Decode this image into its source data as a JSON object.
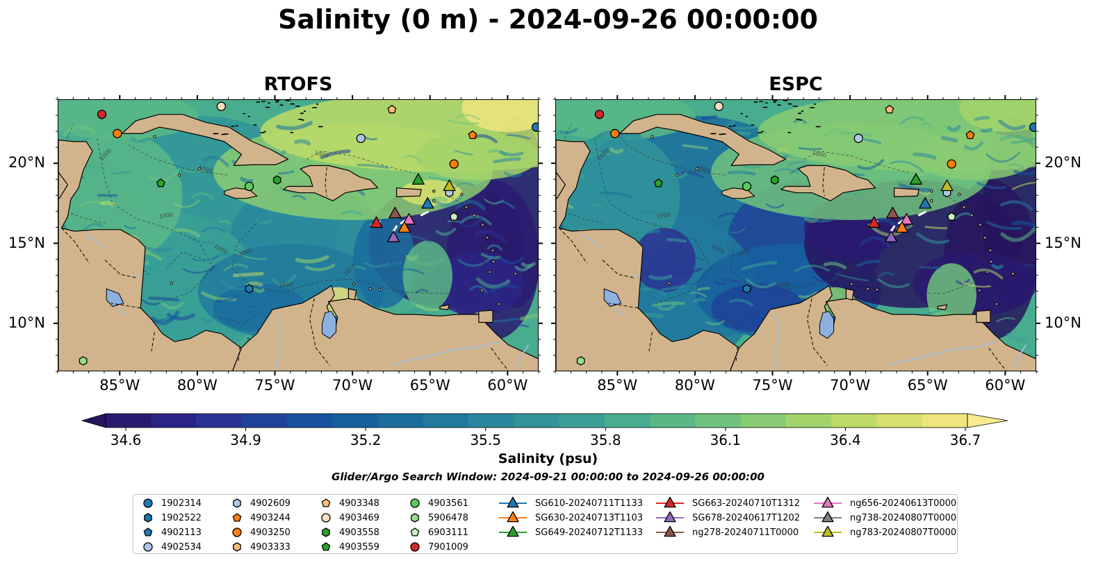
{
  "title": "Salinity (0 m) - 2024-09-26 00:00:00",
  "panels": [
    {
      "title": "RTOFS"
    },
    {
      "title": "ESPC"
    }
  ],
  "lat_labels": [
    "20°N",
    "15°N",
    "10°N"
  ],
  "lon_labels": [
    "85°W",
    "80°W",
    "75°W",
    "70°W",
    "65°W",
    "60°W"
  ],
  "contour_label": "1000",
  "colorbar": {
    "label": "Salinity (psu)",
    "ticks": [
      "34.6",
      "34.9",
      "35.2",
      "35.5",
      "35.8",
      "36.1",
      "36.4",
      "36.7"
    ],
    "min": 34.6,
    "max": 36.7,
    "colors": [
      "#2a1a6e",
      "#2c2485",
      "#2a3393",
      "#1f4399",
      "#16529d",
      "#17609e",
      "#1b6d9e",
      "#217a9e",
      "#29879d",
      "#30949a",
      "#3aa095",
      "#48ac8e",
      "#5ab786",
      "#70c27c",
      "#89cb72",
      "#a3d36a",
      "#bdda67",
      "#d7e06e",
      "#ede57d"
    ],
    "under_color": "#27155e",
    "over_color": "#f7eb8e"
  },
  "search_window": "Glider/Argo Search Window: 2024-09-21 00:00:00 to 2024-09-26 00:00:00",
  "colors": {
    "land": "#d2b48c",
    "river": "#a6bddb",
    "lake": "#8db0e0"
  },
  "legend": [
    {
      "label": "1902314",
      "marker": "circle",
      "color": "#1f77b4"
    },
    {
      "label": "1902522",
      "marker": "hexagon",
      "color": "#1f77b4"
    },
    {
      "label": "4902113",
      "marker": "pentagon",
      "color": "#1f77b4"
    },
    {
      "label": "4902534",
      "marker": "circle",
      "color": "#aec7e8"
    },
    {
      "label": "4902609",
      "marker": "hexagon",
      "color": "#aec7e8"
    },
    {
      "label": "4903244",
      "marker": "pentagon",
      "color": "#ff7f0e"
    },
    {
      "label": "4903250",
      "marker": "circle",
      "color": "#ff7f0e"
    },
    {
      "label": "4903333",
      "marker": "hexagon",
      "color": "#ffbb78"
    },
    {
      "label": "4903348",
      "marker": "pentagon",
      "color": "#ffbb78"
    },
    {
      "label": "4903469",
      "marker": "circle",
      "color": "#ffdcbc"
    },
    {
      "label": "4903558",
      "marker": "hexagon",
      "color": "#2ca02c"
    },
    {
      "label": "4903559",
      "marker": "pentagon",
      "color": "#2ca02c"
    },
    {
      "label": "4903561",
      "marker": "circle",
      "color": "#5ec95e"
    },
    {
      "label": "5906478",
      "marker": "hexagon",
      "color": "#98df8a"
    },
    {
      "label": "6903111",
      "marker": "pentagon",
      "color": "#c8f0c0"
    },
    {
      "label": "7901009",
      "marker": "circle",
      "color": "#d62728"
    },
    {
      "label": "SG610-20240711T1133",
      "marker": "triangle",
      "color": "#1f77b4"
    },
    {
      "label": "SG630-20240713T1103",
      "marker": "triangle",
      "color": "#ff7f0e"
    },
    {
      "label": "SG649-20240712T1133",
      "marker": "triangle",
      "color": "#2ca02c"
    },
    {
      "label": "SG663-20240710T1312",
      "marker": "triangle",
      "color": "#d62728"
    },
    {
      "label": "SG678-20240617T1202",
      "marker": "triangle",
      "color": "#9467bd"
    },
    {
      "label": "ng278-20240711T0000",
      "marker": "triangle",
      "color": "#8c564b"
    },
    {
      "label": "ng656-20240613T0000",
      "marker": "triangle",
      "color": "#e377c2"
    },
    {
      "label": "ng738-20240807T0000",
      "marker": "triangle",
      "color": "#7f7f7f"
    },
    {
      "label": "ng783-20240807T0000",
      "marker": "triangle",
      "color": "#bcbd22"
    }
  ],
  "chart_data": {
    "type": "map",
    "extent_lon": [
      -89,
      -58
    ],
    "extent_lat": [
      7,
      24
    ],
    "observations": [
      {
        "id": "7901009",
        "lon": -86.2,
        "lat": 23.1
      },
      {
        "id": "4903469",
        "lon": -78.5,
        "lat": 23.6
      },
      {
        "id": "4903348",
        "lon": -67.5,
        "lat": 23.4
      },
      {
        "id": "1902314",
        "lon": -58.2,
        "lat": 22.3
      },
      {
        "id": "4903250",
        "lon": -85.2,
        "lat": 21.9
      },
      {
        "id": "4902534",
        "lon": -69.5,
        "lat": 21.6
      },
      {
        "id": "4903244",
        "lon": -62.3,
        "lat": 21.8
      },
      {
        "id": "4903250",
        "lon": -63.5,
        "lat": 20.0
      },
      {
        "id": "4903559",
        "lon": -82.4,
        "lat": 18.8
      },
      {
        "id": "4903558",
        "lon": -74.9,
        "lat": 19.0
      },
      {
        "id": "4903561",
        "lon": -76.7,
        "lat": 18.6
      },
      {
        "id": "4902609",
        "lon": -63.8,
        "lat": 18.2
      },
      {
        "id": "6903111",
        "lon": -63.5,
        "lat": 16.7
      },
      {
        "id": "1902522",
        "lon": -76.7,
        "lat": 12.2
      },
      {
        "id": "5906478",
        "lon": -87.4,
        "lat": 7.7
      },
      {
        "id": "SG649-20240712T1133",
        "lon": -65.8,
        "lat": 19.0
      },
      {
        "id": "ng783-20240807T0000",
        "lon": -63.8,
        "lat": 18.6
      },
      {
        "id": "SG610-20240711T1133",
        "lon": -65.2,
        "lat": 17.5
      },
      {
        "id": "ng278-20240711T0000",
        "lon": -67.3,
        "lat": 16.9
      },
      {
        "id": "ng656-20240613T0000",
        "lon": -66.4,
        "lat": 16.5
      },
      {
        "id": "SG663-20240710T1312",
        "lon": -68.5,
        "lat": 16.3
      },
      {
        "id": "SG630-20240713T1103",
        "lon": -66.7,
        "lat": 16.0
      },
      {
        "id": "SG678-20240617T1202",
        "lon": -67.4,
        "lat": 15.4
      }
    ]
  }
}
